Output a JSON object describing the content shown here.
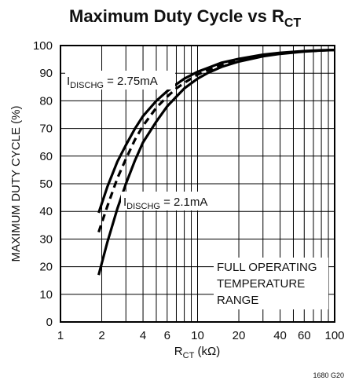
{
  "chart_data": {
    "type": "line",
    "title": {
      "main": "Maximum Duty Cycle vs R",
      "sub": "CT"
    },
    "xlabel": {
      "main": "R",
      "sub": "CT",
      "rest": " (kΩ)"
    },
    "ylabel": "MAXIMUM DUTY CYCLE (%)",
    "x_scale": "log",
    "xlim": [
      1,
      100
    ],
    "ylim": [
      0,
      100
    ],
    "x_ticks": [
      1,
      2,
      4,
      6,
      10,
      20,
      40,
      60,
      100
    ],
    "x_tick_labels": [
      "1",
      "2",
      "4",
      "6",
      "10",
      "20",
      "40",
      "60",
      "100"
    ],
    "x_minor_grid": [
      3,
      5,
      7,
      8,
      9,
      30,
      50,
      70,
      80,
      90
    ],
    "y_ticks": [
      0,
      10,
      20,
      30,
      40,
      50,
      60,
      70,
      80,
      90,
      100
    ],
    "y_tick_labels": [
      "0",
      "10",
      "20",
      "30",
      "40",
      "50",
      "60",
      "70",
      "80",
      "90",
      "100"
    ],
    "grid": true,
    "series": [
      {
        "name": "I_DISCHG = 2.75mA",
        "style": "solid",
        "x": [
          1.9,
          2.2,
          2.6,
          3,
          3.5,
          4,
          5,
          6,
          7,
          8,
          10,
          12,
          15,
          20,
          30,
          40,
          60,
          80,
          100
        ],
        "y": [
          39.5,
          49,
          58,
          64,
          70,
          74.5,
          80,
          83.5,
          86,
          88,
          90.5,
          92,
          93.8,
          95.2,
          96.7,
          97.4,
          98,
          98.3,
          98.4
        ]
      },
      {
        "name": "",
        "style": "dashed",
        "x": [
          1.9,
          2.2,
          2.6,
          3,
          3.5,
          4,
          5,
          6,
          7,
          8,
          10,
          12,
          15,
          20,
          30,
          40,
          60,
          80,
          100
        ],
        "y": [
          32.5,
          42,
          52,
          59,
          66,
          71,
          77.5,
          81.5,
          84.5,
          86.5,
          89.5,
          91.2,
          93,
          94.7,
          96.4,
          97.2,
          97.9,
          98.2,
          98.4
        ]
      },
      {
        "name": "I_DISCHG = 2.1mA",
        "style": "solid",
        "x": [
          1.9,
          2.2,
          2.6,
          3,
          3.5,
          4,
          5,
          6,
          7,
          8,
          10,
          12,
          15,
          20,
          30,
          40,
          60,
          80,
          100
        ],
        "y": [
          17,
          29,
          41,
          50,
          58.5,
          65,
          72.5,
          78,
          81.5,
          84.5,
          88,
          90.2,
          92.3,
          94.2,
          96.1,
          97,
          97.8,
          98.2,
          98.4
        ]
      }
    ],
    "annotations": {
      "label_high": {
        "prefix": "I",
        "sub": "DISCHG",
        "rest": " = 2.75mA"
      },
      "label_low": {
        "prefix": "I",
        "sub": "DISCHG",
        "rest": " = 2.1mA"
      },
      "note_lines": [
        "FULL OPERATING",
        "TEMPERATURE",
        "RANGE"
      ],
      "figure_code": "1680 G20"
    }
  }
}
